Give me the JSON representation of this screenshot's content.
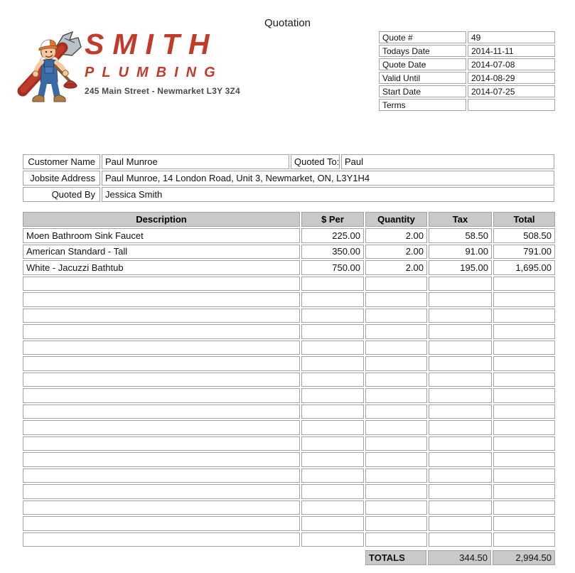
{
  "title": "Quotation",
  "logo": {
    "brand_line1": "SMITH",
    "brand_line2": "PLUMBING",
    "address": "245 Main Street - Newmarket L3Y 3Z4",
    "mascot_icon": "plumber-with-pipe-wrench-and-plunger",
    "brand_color": "#c13b2a"
  },
  "quote_info": {
    "rows": [
      {
        "label": "Quote #",
        "value": "49"
      },
      {
        "label": "Todays Date",
        "value": "2014-11-11"
      },
      {
        "label": "Quote Date",
        "value": "2014-07-08"
      },
      {
        "label": "Valid Until",
        "value": "2014-08-29"
      },
      {
        "label": "Start Date",
        "value": "2014-07-25"
      },
      {
        "label": "Terms",
        "value": ""
      }
    ]
  },
  "customer": {
    "customer_name_label": "Customer Name",
    "customer_name": "Paul Munroe",
    "quoted_to_label": "Quoted To:",
    "quoted_to": "Paul",
    "jobsite_address_label": "Jobsite Address",
    "jobsite_address": "Paul Munroe, 14 London Road, Unit 3, Newmarket, ON, L3Y1H4",
    "quoted_by_label": "Quoted By",
    "quoted_by": "Jessica Smith"
  },
  "items_table": {
    "headers": [
      "Description",
      "$ Per",
      "Quantity",
      "Tax",
      "Total"
    ],
    "rows": [
      {
        "description": "Moen Bathroom Sink Faucet",
        "per": "225.00",
        "quantity": "2.00",
        "tax": "58.50",
        "total": "508.50"
      },
      {
        "description": "American Standard - Tall",
        "per": "350.00",
        "quantity": "2.00",
        "tax": "91.00",
        "total": "791.00"
      },
      {
        "description": "White - Jacuzzi Bathtub",
        "per": "750.00",
        "quantity": "2.00",
        "tax": "195.00",
        "total": "1,695.00"
      }
    ],
    "empty_row_count": 17,
    "totals_label": "TOTALS",
    "totals_tax": "344.50",
    "totals_total": "2,994.50"
  },
  "colors": {
    "border": "#a2a2a2",
    "header_bg": "#c9c9c9",
    "accent_red": "#c13b2a"
  }
}
